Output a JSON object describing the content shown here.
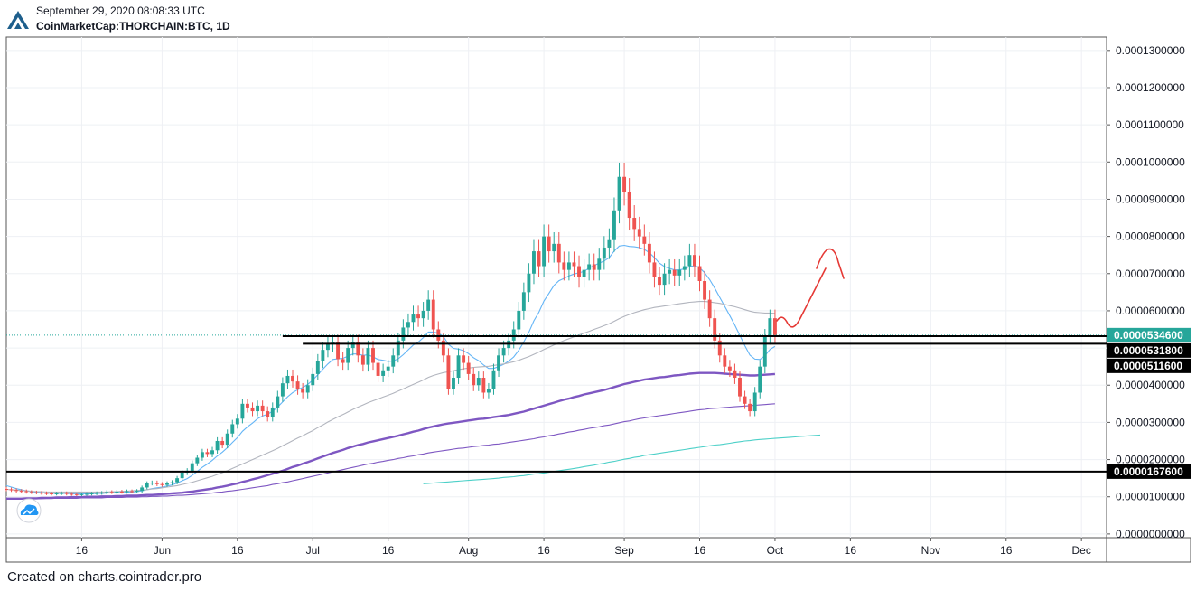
{
  "header": {
    "timestamp": "September 29, 2020 08:08:33 UTC",
    "symbol": "CoinMarketCap:THORCHAIN:BTC, 1D"
  },
  "footer": {
    "text": "Created on charts.cointrader.pro"
  },
  "colors": {
    "up": "#26a69a",
    "down": "#ef5350",
    "grid": "#eef0f4",
    "ma_fast": "#64b5f6",
    "ma_mid": "#7e57c2",
    "ma_gray": "#b2b5be",
    "ma_teal": "#4dd0c8",
    "drawing": "#e53935",
    "level": "#000000",
    "current": "#26a69a"
  },
  "chart_data": {
    "type": "candlestick",
    "title": "CoinMarketCap:THORCHAIN:BTC, 1D",
    "x_axis": {
      "range": [
        "2020-05-01",
        "2020-12-06"
      ],
      "ticks": [
        {
          "date": "2020-05-16",
          "label": "16"
        },
        {
          "date": "2020-06-01",
          "label": "Jun"
        },
        {
          "date": "2020-06-16",
          "label": "16"
        },
        {
          "date": "2020-07-01",
          "label": "Jul"
        },
        {
          "date": "2020-07-16",
          "label": "16"
        },
        {
          "date": "2020-08-01",
          "label": "Aug"
        },
        {
          "date": "2020-08-16",
          "label": "16"
        },
        {
          "date": "2020-09-01",
          "label": "Sep"
        },
        {
          "date": "2020-09-16",
          "label": "16"
        },
        {
          "date": "2020-10-01",
          "label": "Oct"
        },
        {
          "date": "2020-10-16",
          "label": "16"
        },
        {
          "date": "2020-11-01",
          "label": "Nov"
        },
        {
          "date": "2020-11-16",
          "label": "16"
        },
        {
          "date": "2020-12-01",
          "label": "Dec"
        }
      ]
    },
    "y_axis": {
      "range": [
        -1e-06,
        0.0001336
      ],
      "ticks": [
        "0.0000000000",
        "0.0000100000",
        "0.0000200000",
        "0.0000300000",
        "0.0000400000",
        "0.0000500000",
        "0.0000600000",
        "0.0000700000",
        "0.0000800000",
        "0.0000900000",
        "0.0001000000",
        "0.0001100000",
        "0.0001200000",
        "0.0001300000"
      ],
      "ticks_numeric": [
        0.0,
        1e-05,
        2e-05,
        3e-05,
        4e-05,
        5e-05,
        6e-05,
        7e-05,
        8e-05,
        9e-05,
        0.0001,
        0.00011,
        0.00012,
        0.00013
      ]
    },
    "price_tags": [
      {
        "label": "0.0000534600",
        "value": 5.346e-05,
        "kind": "current"
      },
      {
        "label": "0.0000531800",
        "value": 5.318e-05,
        "kind": "level"
      },
      {
        "label": "0.0000511600",
        "value": 5.116e-05,
        "kind": "level"
      },
      {
        "label": "0.0000167600",
        "value": 1.676e-05,
        "kind": "level"
      }
    ],
    "horizontal_levels": [
      {
        "value": 5.318e-05,
        "from": "2020-06-25"
      },
      {
        "value": 5.116e-05,
        "from": "2020-06-29"
      },
      {
        "value": 1.676e-05,
        "from": "2020-05-01"
      }
    ],
    "current_price_line": {
      "value": 5.346e-05
    },
    "candles": {
      "start": "2020-05-01",
      "closes": [
        12.0,
        11.8,
        11.6,
        11.5,
        11.3,
        11.2,
        11.1,
        11.0,
        10.9,
        10.8,
        10.9,
        11.0,
        10.8,
        10.7,
        10.6,
        10.7,
        10.8,
        10.9,
        11.0,
        11.1,
        11.3,
        11.2,
        11.4,
        11.3,
        11.5,
        11.4,
        11.6,
        12.5,
        13.6,
        13.8,
        13.4,
        13.2,
        13.6,
        13.9,
        15.0,
        16.5,
        17.0,
        19.0,
        20.5,
        22.0,
        21.5,
        22.5,
        25.0,
        24.0,
        27.0,
        29.5,
        31.0,
        35.0,
        34.0,
        33.0,
        34.5,
        33.0,
        31.5,
        34.0,
        37.0,
        40.5,
        42.5,
        41.0,
        39.0,
        38.0,
        40.0,
        43.0,
        46.5,
        49.5,
        51.0,
        51.5,
        47.0,
        46.0,
        50.0,
        51.5,
        48.0,
        45.5,
        50.0,
        46.0,
        42.5,
        44.0,
        45.0,
        48.0,
        52.0,
        55.5,
        57.0,
        59.0,
        58.0,
        60.0,
        63.0,
        55.0,
        52.0,
        48.0,
        39.0,
        42.0,
        48.0,
        46.0,
        43.0,
        40.0,
        42.0,
        38.0,
        39.0,
        44.0,
        48.0,
        50.0,
        52.0,
        55.0,
        60.0,
        65.0,
        70.0,
        76.0,
        72.0,
        80.0,
        76.0,
        78.0,
        73.0,
        71.0,
        73.0,
        72.0,
        69.0,
        71.0,
        72.5,
        71.0,
        74.0,
        77.0,
        79.0,
        87.0,
        96.0,
        92.0,
        85.0,
        82.0,
        80.0,
        78.0,
        73.0,
        69.0,
        67.0,
        70.0,
        71.0,
        69.5,
        71.0,
        72.0,
        75.0,
        72.0,
        68.0,
        63.0,
        58.0,
        52.0,
        48.0,
        45.0,
        44.0,
        42.0,
        37.0,
        35.0,
        33.0,
        38.0,
        45.0,
        53.0,
        58.0,
        53.46
      ],
      "note": "closes in units of 1e-6 BTC, one per day from start"
    },
    "moving_averages": [
      {
        "name": "MA fast",
        "color_key": "ma_fast",
        "start": "2020-05-01",
        "values": [
          13.0,
          12.6,
          12.2,
          11.9,
          11.6,
          11.4,
          11.2,
          11.1,
          11.0,
          10.9,
          10.9,
          10.9,
          10.9,
          10.8,
          10.8,
          10.8,
          10.8,
          10.8,
          10.9,
          10.9,
          11.0,
          11.1,
          11.2,
          11.2,
          11.3,
          11.3,
          11.4,
          11.6,
          11.9,
          12.2,
          12.4,
          12.6,
          12.9,
          13.2,
          13.7,
          14.3,
          14.9,
          15.8,
          16.8,
          17.9,
          18.8,
          19.8,
          21.0,
          22.0,
          23.2,
          24.6,
          25.9,
          27.6,
          28.8,
          29.8,
          31.0,
          31.7,
          32.2,
          33.0,
          34.1,
          35.5,
          36.9,
          38.0,
          38.8,
          39.4,
          40.2,
          41.4,
          42.8,
          44.3,
          45.7,
          46.9,
          47.1,
          47.2,
          47.8,
          48.4,
          48.4,
          48.0,
          48.2,
          47.6,
          46.9,
          46.7,
          46.4,
          46.5,
          47.1,
          48.2,
          49.5,
          50.8,
          51.6,
          52.8,
          54.3,
          54.3,
          54.0,
          53.1,
          51.0,
          49.9,
          49.7,
          49.3,
          48.5,
          47.4,
          46.6,
          45.4,
          44.5,
          44.5,
          45.0,
          45.6,
          46.5,
          47.6,
          49.4,
          51.6,
          54.2,
          57.3,
          59.6,
          62.6,
          64.7,
          66.8,
          68.1,
          68.7,
          69.4,
          69.9,
          70.2,
          70.6,
          71.5,
          72.2,
          72.8,
          73.4,
          74.3,
          76.1,
          77.4,
          77.6,
          77.3,
          77.2,
          77.0,
          76.5,
          75.6,
          74.3,
          72.8,
          71.9,
          71.4,
          71.0,
          71.0,
          71.3,
          71.9,
          72.1,
          71.6,
          70.2,
          68.4,
          66.1,
          63.6,
          61.2,
          58.7,
          56.2,
          53.4,
          50.6,
          48.1,
          47.0,
          46.9,
          47.9,
          49.6,
          50.4
        ]
      },
      {
        "name": "MA gray",
        "color_key": "ma_gray",
        "start": "2020-05-01",
        "values": [
          12.0,
          11.9,
          11.8,
          11.7,
          11.6,
          11.5,
          11.4,
          11.4,
          11.3,
          11.3,
          11.3,
          11.3,
          11.3,
          11.3,
          11.3,
          11.3,
          11.3,
          11.3,
          11.3,
          11.3,
          11.3,
          11.4,
          11.4,
          11.5,
          11.5,
          11.6,
          11.7,
          11.8,
          11.9,
          12.1,
          12.2,
          12.4,
          12.6,
          12.8,
          13.0,
          13.3,
          13.6,
          13.9,
          14.3,
          14.7,
          15.1,
          15.5,
          16.0,
          16.5,
          17.0,
          17.6,
          18.2,
          18.8,
          19.4,
          20.0,
          20.6,
          21.2,
          21.8,
          22.4,
          23.0,
          23.7,
          24.4,
          25.1,
          25.8,
          26.4,
          27.1,
          27.8,
          28.6,
          29.3,
          30.1,
          30.8,
          31.5,
          32.1,
          32.8,
          33.5,
          34.1,
          34.7,
          35.3,
          35.8,
          36.3,
          36.8,
          37.3,
          37.8,
          38.4,
          39.0,
          39.6,
          40.2,
          40.8,
          41.4,
          42.1,
          42.6,
          43.0,
          43.4,
          43.6,
          43.9,
          44.2,
          44.4,
          44.6,
          44.8,
          44.9,
          45.0,
          45.1,
          45.3,
          45.5,
          45.7,
          46.0,
          46.3,
          46.7,
          47.2,
          47.7,
          48.3,
          48.9,
          49.6,
          50.2,
          50.8,
          51.4,
          52.0,
          52.5,
          53.0,
          53.5,
          54.0,
          54.5,
          55.0,
          55.5,
          56.0,
          56.5,
          57.2,
          57.9,
          58.5,
          59.0,
          59.5,
          59.9,
          60.3,
          60.6,
          60.9,
          61.1,
          61.3,
          61.5,
          61.7,
          61.9,
          62.1,
          62.3,
          62.4,
          62.5,
          62.5,
          62.4,
          62.2,
          62.0,
          61.7,
          61.4,
          61.1,
          60.7,
          60.3,
          59.9,
          59.6,
          59.5,
          59.4,
          59.4,
          59.3
        ]
      },
      {
        "name": "MA mid",
        "color_key": "ma_mid",
        "start": "2020-05-01",
        "values": [
          9.5,
          9.5,
          9.5,
          9.5,
          9.6,
          9.6,
          9.6,
          9.7,
          9.7,
          9.7,
          9.8,
          9.8,
          9.8,
          9.9,
          9.9,
          9.9,
          10.0,
          10.0,
          10.0,
          10.1,
          10.1,
          10.1,
          10.2,
          10.2,
          10.3,
          10.3,
          10.3,
          10.4,
          10.5,
          10.5,
          10.6,
          10.7,
          10.8,
          10.9,
          11.0,
          11.1,
          11.3,
          11.4,
          11.6,
          11.8,
          12.0,
          12.2,
          12.5,
          12.7,
          13.0,
          13.3,
          13.6,
          14.0,
          14.3,
          14.7,
          15.0,
          15.4,
          15.8,
          16.2,
          16.6,
          17.0,
          17.5,
          18.0,
          18.4,
          18.9,
          19.3,
          19.8,
          20.3,
          20.8,
          21.3,
          21.8,
          22.2,
          22.6,
          23.1,
          23.5,
          23.9,
          24.2,
          24.6,
          24.9,
          25.2,
          25.5,
          25.8,
          26.1,
          26.4,
          26.8,
          27.1,
          27.5,
          27.8,
          28.2,
          28.6,
          28.9,
          29.2,
          29.5,
          29.7,
          29.9,
          30.1,
          30.3,
          30.5,
          30.7,
          30.9,
          31.0,
          31.2,
          31.4,
          31.6,
          31.8,
          32.0,
          32.3,
          32.6,
          32.9,
          33.3,
          33.7,
          34.1,
          34.5,
          34.9,
          35.3,
          35.7,
          36.1,
          36.4,
          36.8,
          37.1,
          37.5,
          37.8,
          38.1,
          38.4,
          38.7,
          39.1,
          39.5,
          39.9,
          40.3,
          40.6,
          40.9,
          41.2,
          41.5,
          41.7,
          41.9,
          42.1,
          42.2,
          42.4,
          42.6,
          42.7,
          42.9,
          43.1,
          43.2,
          43.3,
          43.3,
          43.3,
          43.3,
          43.2,
          43.1,
          43.0,
          42.9,
          42.8,
          42.7,
          42.6,
          42.6,
          42.7,
          42.8,
          42.9,
          43.0
        ]
      },
      {
        "name": "MA purple thin",
        "color_key": "ma_mid",
        "start": "2020-05-01",
        "values": [
          9.5,
          9.5,
          9.5,
          9.5,
          9.5,
          9.5,
          9.5,
          9.5,
          9.6,
          9.6,
          9.6,
          9.6,
          9.6,
          9.6,
          9.6,
          9.7,
          9.7,
          9.7,
          9.7,
          9.7,
          9.8,
          9.8,
          9.8,
          9.8,
          9.9,
          9.9,
          9.9,
          10.0,
          10.0,
          10.1,
          10.1,
          10.2,
          10.2,
          10.3,
          10.4,
          10.4,
          10.5,
          10.6,
          10.7,
          10.8,
          10.9,
          11.0,
          11.2,
          11.3,
          11.5,
          11.6,
          11.8,
          12.0,
          12.2,
          12.4,
          12.6,
          12.8,
          13.0,
          13.3,
          13.5,
          13.8,
          14.0,
          14.3,
          14.6,
          14.9,
          15.2,
          15.5,
          15.8,
          16.1,
          16.4,
          16.7,
          17.0,
          17.3,
          17.6,
          17.9,
          18.2,
          18.5,
          18.8,
          19.0,
          19.3,
          19.5,
          19.8,
          20.0,
          20.3,
          20.5,
          20.8,
          21.0,
          21.3,
          21.5,
          21.8,
          22.0,
          22.2,
          22.4,
          22.6,
          22.8,
          23.0,
          23.1,
          23.3,
          23.5,
          23.6,
          23.8,
          23.9,
          24.1,
          24.2,
          24.4,
          24.6,
          24.8,
          25.0,
          25.2,
          25.4,
          25.6,
          25.9,
          26.1,
          26.4,
          26.6,
          26.9,
          27.1,
          27.4,
          27.6,
          27.9,
          28.1,
          28.4,
          28.6,
          28.8,
          29.1,
          29.3,
          29.6,
          29.9,
          30.2,
          30.4,
          30.7,
          31.0,
          31.2,
          31.4,
          31.6,
          31.8,
          32.0,
          32.2,
          32.4,
          32.6,
          32.8,
          33.0,
          33.2,
          33.4,
          33.5,
          33.7,
          33.8,
          33.9,
          34.0,
          34.1,
          34.2,
          34.3,
          34.4,
          34.5,
          34.6,
          34.7,
          34.8,
          34.9,
          35.0
        ]
      },
      {
        "name": "MA teal",
        "color_key": "ma_teal",
        "start": "2020-07-23",
        "values": [
          13.5,
          13.6,
          13.7,
          13.8,
          13.9,
          14.0,
          14.1,
          14.2,
          14.3,
          14.4,
          14.5,
          14.6,
          14.7,
          14.8,
          14.9,
          15.0,
          15.2,
          15.3,
          15.4,
          15.6,
          15.7,
          15.9,
          16.1,
          16.2,
          16.4,
          16.6,
          16.8,
          17.0,
          17.2,
          17.4,
          17.6,
          17.8,
          18.1,
          18.3,
          18.5,
          18.8,
          19.0,
          19.3,
          19.5,
          19.8,
          20.1,
          20.3,
          20.6,
          20.8,
          21.1,
          21.3,
          21.5,
          21.7,
          21.9,
          22.1,
          22.3,
          22.5,
          22.7,
          22.9,
          23.1,
          23.3,
          23.5,
          23.7,
          23.9,
          24.0,
          24.2,
          24.4,
          24.6,
          24.8,
          25.0,
          25.1,
          25.3,
          25.4,
          25.5,
          25.6,
          25.7,
          25.8,
          25.9,
          26.0,
          26.1,
          26.2,
          26.3,
          26.4,
          26.5,
          26.6
        ]
      }
    ],
    "drawing_note": "hand-drawn red projection arrow upward after late September"
  }
}
